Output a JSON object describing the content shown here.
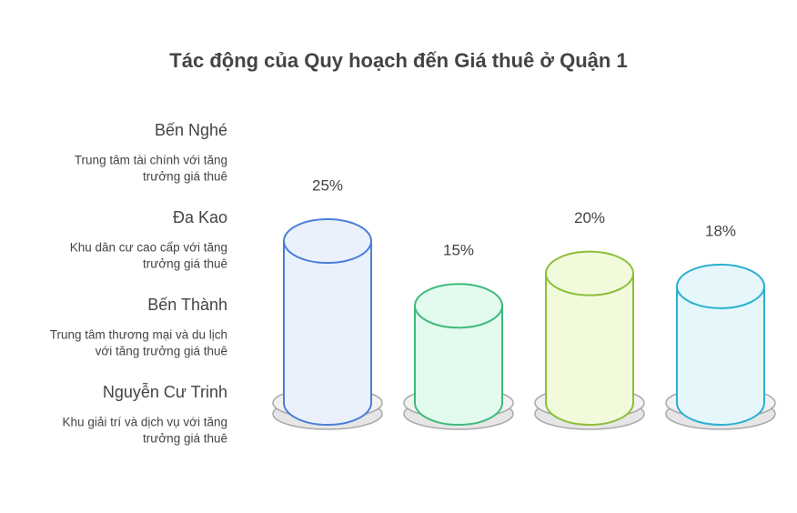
{
  "chart_data": {
    "type": "cylinder",
    "title": "Tác động của Quy hoạch đến Giá thuê ở Quận 1",
    "categories": [
      "Bến Nghé",
      "Đa Kao",
      "Bến Thành",
      "Nguyễn Cư Trinh"
    ],
    "descriptions": [
      [
        "Trung tâm tài chính với tăng",
        "trưởng giá thuê"
      ],
      [
        "Khu dân cư cao cấp với tăng",
        "trưởng giá thuê"
      ],
      [
        "Trung tâm thương mại và du lịch",
        "với tăng trưởng giá thuê"
      ],
      [
        "Khu giải trí và dịch vụ với tăng",
        "trưởng giá thuê"
      ]
    ],
    "values": [
      25,
      15,
      20,
      18
    ],
    "value_labels": [
      "25%",
      "15%",
      "20%",
      "18%"
    ],
    "colors": [
      "#4a7fd8",
      "#3dbb7a",
      "#8cbf3a",
      "#2bb0d0"
    ],
    "fills": [
      "#eaf1fd",
      "#e3fbef",
      "#f1fbdc",
      "#e6f7fc"
    ]
  }
}
